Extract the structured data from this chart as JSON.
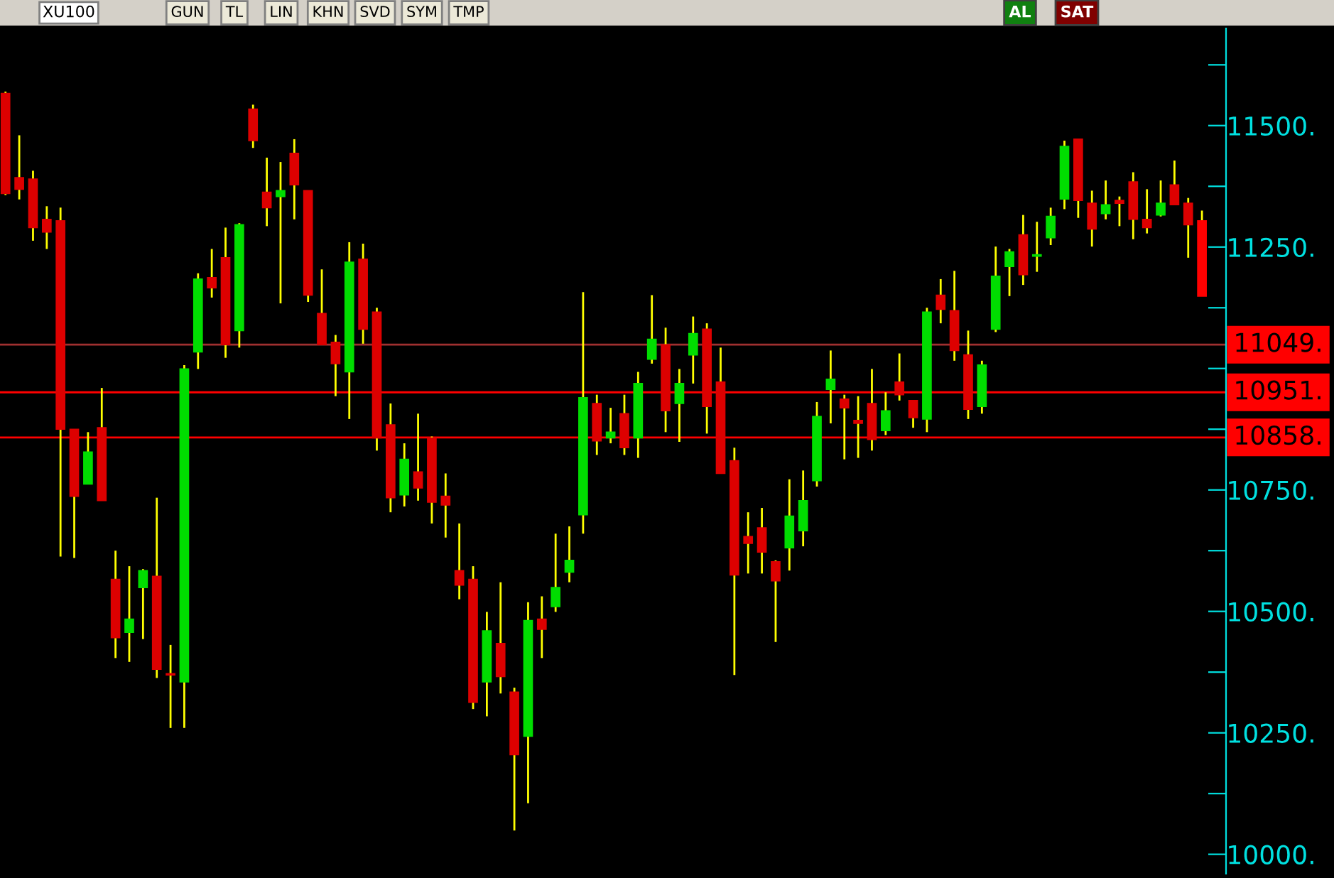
{
  "chart_data": {
    "type": "candlestick",
    "title": "XU100",
    "annotations": [
      "GUN",
      "TL",
      "LIN",
      "KHN",
      "SVD",
      "SYM",
      "TMP",
      "AL",
      "SAT"
    ],
    "categories": [
      null,
      null,
      null,
      null,
      null,
      null,
      null,
      null,
      null,
      null,
      null,
      null,
      null,
      null,
      null,
      null,
      null,
      null,
      null,
      null,
      null,
      null,
      null,
      null,
      null,
      null,
      null,
      null,
      null,
      null,
      null,
      null,
      null,
      null,
      null,
      null,
      null,
      null,
      null,
      null,
      null,
      null,
      null,
      null,
      null,
      null,
      null,
      null,
      null,
      null,
      null,
      null,
      null,
      null,
      null,
      null,
      null,
      null,
      null,
      null,
      null,
      null,
      null,
      null,
      null,
      null,
      null,
      null,
      null,
      null,
      null,
      null,
      null,
      null,
      null,
      null,
      null,
      null,
      null,
      null,
      null,
      null,
      null,
      null,
      null,
      null,
      null,
      null
    ],
    "ohlc": [
      [
        11566,
        11570,
        11357,
        11360
      ],
      [
        11393,
        11480,
        11348,
        11369
      ],
      [
        11390,
        11407,
        11263,
        11290
      ],
      [
        11307,
        11334,
        11246,
        11281
      ],
      [
        11304,
        11331,
        10613,
        10875
      ],
      [
        10875,
        10875,
        10610,
        10737
      ],
      [
        10762,
        10869,
        10762,
        10828
      ],
      [
        10878,
        10960,
        10728,
        10728
      ],
      [
        10566,
        10625,
        10404,
        10446
      ],
      [
        10457,
        10593,
        10396,
        10484
      ],
      [
        10549,
        10587,
        10443,
        10584
      ],
      [
        10572,
        10734,
        10363,
        10381
      ],
      [
        10372,
        10431,
        10260,
        10369
      ],
      [
        10355,
        11007,
        10260,
        10999
      ],
      [
        11034,
        11196,
        10999,
        11184
      ],
      [
        11187,
        11246,
        11146,
        11166
      ],
      [
        11228,
        11290,
        11022,
        11049
      ],
      [
        11078,
        11299,
        11043,
        11296
      ],
      [
        11534,
        11543,
        11454,
        11469
      ],
      [
        11363,
        11434,
        11293,
        11331
      ],
      [
        11354,
        11425,
        11134,
        11366
      ],
      [
        11443,
        11472,
        11307,
        11378
      ],
      [
        11366,
        11366,
        11137,
        11151
      ],
      [
        11113,
        11204,
        11049,
        11049
      ],
      [
        11054,
        11069,
        10943,
        11010
      ],
      [
        10993,
        11260,
        10896,
        11219
      ],
      [
        11225,
        11257,
        11051,
        11081
      ],
      [
        11116,
        11125,
        10831,
        10857
      ],
      [
        10884,
        10928,
        10704,
        10734
      ],
      [
        10740,
        10846,
        10716,
        10813
      ],
      [
        10787,
        10907,
        10728,
        10754
      ],
      [
        10857,
        10860,
        10681,
        10725
      ],
      [
        10737,
        10784,
        10652,
        10719
      ],
      [
        10584,
        10681,
        10525,
        10554
      ],
      [
        10566,
        10593,
        10299,
        10313
      ],
      [
        10355,
        10499,
        10284,
        10460
      ],
      [
        10434,
        10560,
        10331,
        10366
      ],
      [
        10334,
        10343,
        10049,
        10205
      ],
      [
        10243,
        10519,
        10105,
        10481
      ],
      [
        10484,
        10531,
        10404,
        10463
      ],
      [
        10510,
        10660,
        10499,
        10549
      ],
      [
        10581,
        10675,
        10560,
        10605
      ],
      [
        10699,
        11157,
        10660,
        10940
      ],
      [
        10928,
        10946,
        10822,
        10851
      ],
      [
        10857,
        10919,
        10846,
        10869
      ],
      [
        10907,
        10946,
        10822,
        10837
      ],
      [
        10857,
        10993,
        10816,
        10969
      ],
      [
        11019,
        11151,
        11010,
        11060
      ],
      [
        11049,
        11084,
        10869,
        10913
      ],
      [
        10928,
        10999,
        10849,
        10969
      ],
      [
        11028,
        11107,
        10969,
        11072
      ],
      [
        11081,
        11093,
        10866,
        10922
      ],
      [
        10972,
        11043,
        10784,
        10784
      ],
      [
        10810,
        10837,
        10369,
        10575
      ],
      [
        10654,
        10704,
        10578,
        10640
      ],
      [
        10672,
        10713,
        10578,
        10622
      ],
      [
        10602,
        10605,
        10437,
        10563
      ],
      [
        10631,
        10772,
        10584,
        10696
      ],
      [
        10666,
        10790,
        10634,
        10728
      ],
      [
        10769,
        10931,
        10757,
        10901
      ],
      [
        10957,
        11037,
        10887,
        10978
      ],
      [
        10937,
        10946,
        10813,
        10919
      ],
      [
        10893,
        10943,
        10816,
        10887
      ],
      [
        10928,
        10999,
        10831,
        10854
      ],
      [
        10872,
        10951,
        10863,
        10913
      ],
      [
        10972,
        11031,
        10934,
        10946
      ],
      [
        10934,
        10934,
        10878,
        10899
      ],
      [
        10896,
        11125,
        10869,
        11116
      ],
      [
        11151,
        11184,
        11093,
        11122
      ],
      [
        11119,
        11201,
        11016,
        11037
      ],
      [
        11028,
        11078,
        10896,
        10916
      ],
      [
        10922,
        11016,
        10907,
        11007
      ],
      [
        11081,
        11251,
        11075,
        11190
      ],
      [
        11210,
        11246,
        11149,
        11240
      ],
      [
        11275,
        11316,
        11172,
        11193
      ],
      [
        11231,
        11302,
        11199,
        11234
      ],
      [
        11269,
        11331,
        11254,
        11313
      ],
      [
        11349,
        11469,
        11328,
        11457
      ],
      [
        11472,
        11472,
        11310,
        11346
      ],
      [
        11340,
        11366,
        11251,
        11287
      ],
      [
        11319,
        11387,
        11307,
        11337
      ],
      [
        11346,
        11354,
        11293,
        11340
      ],
      [
        11384,
        11404,
        11266,
        11307
      ],
      [
        11307,
        11369,
        11278,
        11290
      ],
      [
        11316,
        11387,
        11313,
        11340
      ],
      [
        11378,
        11428,
        11337,
        11337
      ],
      [
        11340,
        11351,
        11228,
        11296
      ],
      [
        11304,
        11325,
        11149,
        11149
      ]
    ],
    "colors": [
      "#dd0000",
      "#dd0000",
      "#dd0000",
      "#dd0000",
      "#dd0000",
      "#dd0000",
      "#00dd00",
      "#dd0000",
      "#dd0000",
      "#00dd00",
      "#00dd00",
      "#dd0000",
      "#dd0000",
      "#00dd00",
      "#00dd00",
      "#dd0000",
      "#dd0000",
      "#00dd00",
      "#dd0000",
      "#dd0000",
      "#00dd00",
      "#dd0000",
      "#dd0000",
      "#dd0000",
      "#dd0000",
      "#00dd00",
      "#dd0000",
      "#dd0000",
      "#dd0000",
      "#00dd00",
      "#dd0000",
      "#dd0000",
      "#dd0000",
      "#dd0000",
      "#dd0000",
      "#00dd00",
      "#dd0000",
      "#dd0000",
      "#00dd00",
      "#dd0000",
      "#00dd00",
      "#00dd00",
      "#00dd00",
      "#dd0000",
      "#00dd00",
      "#dd0000",
      "#00dd00",
      "#00dd00",
      "#dd0000",
      "#00dd00",
      "#00dd00",
      "#dd0000",
      "#dd0000",
      "#dd0000",
      "#dd0000",
      "#dd0000",
      "#dd0000",
      "#00dd00",
      "#00dd00",
      "#00dd00",
      "#00dd00",
      "#dd0000",
      "#dd0000",
      "#dd0000",
      "#00dd00",
      "#dd0000",
      "#dd0000",
      "#00dd00",
      "#dd0000",
      "#dd0000",
      "#dd0000",
      "#00dd00",
      "#00dd00",
      "#00dd00",
      "#dd0000",
      "#00dd00",
      "#00dd00",
      "#00dd00",
      "#dd0000",
      "#dd0000",
      "#00dd00",
      "#dd0000",
      "#dd0000",
      "#dd0000",
      "#00dd00",
      "#dd0000",
      "#dd0000",
      "#ff0000"
    ],
    "ylim": [
      9960,
      11700
    ],
    "yticks": [
      {
        "value": 10000,
        "label": "10000."
      },
      {
        "value": 10125,
        "label": null
      },
      {
        "value": 10250,
        "label": "10250."
      },
      {
        "value": 10375,
        "label": null
      },
      {
        "value": 10500,
        "label": "10500."
      },
      {
        "value": 10625,
        "label": null
      },
      {
        "value": 10750,
        "label": "10750."
      },
      {
        "value": 10875,
        "label": null
      },
      {
        "value": 11000,
        "label": null
      },
      {
        "value": 11125,
        "label": null
      },
      {
        "value": 11250,
        "label": "11250."
      },
      {
        "value": 11375,
        "label": null
      },
      {
        "value": 11500,
        "label": "11500."
      },
      {
        "value": 11625,
        "label": null
      }
    ],
    "tick_labels": "y",
    "ref_lines": [
      {
        "axis": "y",
        "value": 11049,
        "label": "11049.",
        "color": "#a03030"
      },
      {
        "axis": "y",
        "value": 10951,
        "label": "10951.",
        "color": "#ff0000"
      },
      {
        "axis": "y",
        "value": 10858,
        "label": "10858.",
        "color": "#ff0000"
      }
    ],
    "grid": false,
    "legend": false
  }
}
